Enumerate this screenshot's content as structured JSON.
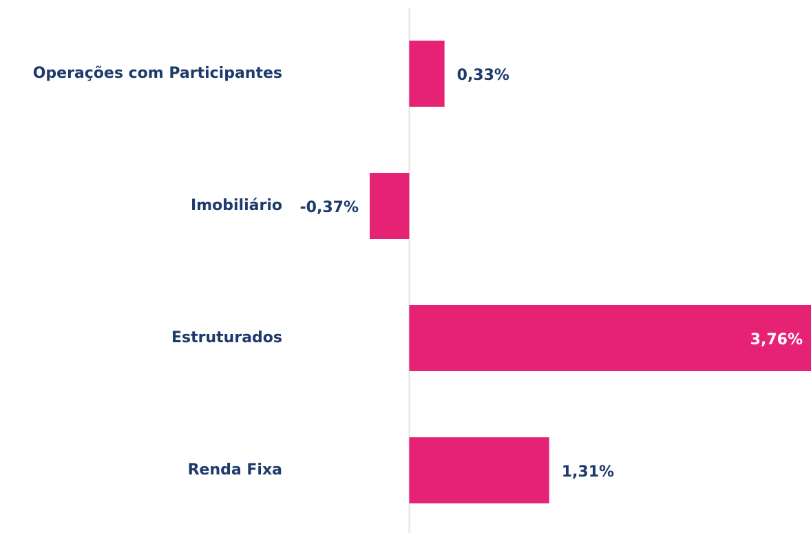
{
  "chart_data": {
    "type": "hbar",
    "categories": [
      "Operações com Participantes",
      "Imobiliário",
      "Estruturados",
      "Renda Fixa"
    ],
    "values": [
      0.33,
      -0.37,
      3.76,
      1.31
    ],
    "value_labels": [
      "0,33%",
      "-0,37%",
      "3,76%",
      "1,31%"
    ],
    "color": "#e52273",
    "xlim": [
      -0.37,
      3.76
    ]
  }
}
